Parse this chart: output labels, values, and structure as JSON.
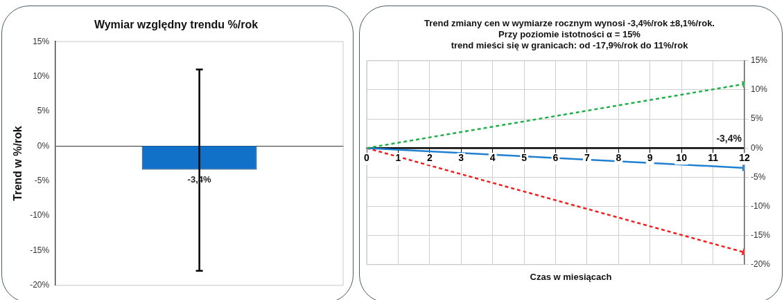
{
  "chart_data": [
    {
      "type": "bar",
      "title": "Wymiar względny trendu %/rok",
      "ylabel": "Trend w %/rok",
      "categories": [
        null
      ],
      "series": [
        {
          "color": "#1170c8",
          "values": [
            -3.4
          ],
          "errors": [
            [
              -17.9,
              11
            ]
          ],
          "value_labels": [
            "-3,4%"
          ]
        }
      ],
      "ylim": [
        -20,
        15
      ],
      "yticks": [
        {
          "value": -20,
          "label": "-20%"
        },
        {
          "value": -15,
          "label": "-15%"
        },
        {
          "value": -10,
          "label": "-10%"
        },
        {
          "value": -5,
          "label": "-5%"
        },
        {
          "value": 0,
          "label": "0%"
        },
        {
          "value": 5,
          "label": "5%"
        },
        {
          "value": 10,
          "label": "10%"
        },
        {
          "value": 15,
          "label": "15%"
        }
      ],
      "grid": false,
      "legend": false
    },
    {
      "type": "line",
      "title": "Trend zmiany cen w wymiarze rocznym wynosi -3,4%/rok ±8,1%/rok.\nPrzy poziomie istotności α = 15%\ntrend mieści się w granicach: od -17,9%/rok do 11%/rok",
      "xlabel": "Czas w miesiącach",
      "series": [
        {
          "color": "#1fb04a",
          "values": [
            0,
            11
          ],
          "line_style": "dashed",
          "axis": "y2"
        },
        {
          "color": "#1f7fd0",
          "values": [
            0,
            -3.4
          ],
          "line_style": "solid",
          "axis": "y2"
        },
        {
          "color": "#f21d1d",
          "values": [
            0,
            -17.9
          ],
          "line_style": "dashed",
          "axis": "y2"
        }
      ],
      "x": [
        0,
        12
      ],
      "xlim": [
        0,
        12
      ],
      "xticks": [
        0,
        1,
        2,
        3,
        4,
        5,
        6,
        7,
        8,
        9,
        10,
        11,
        12
      ],
      "y2lim": [
        -20,
        15
      ],
      "y2ticks": [
        {
          "value": -20,
          "label": "-20%"
        },
        {
          "value": -15,
          "label": "-15%"
        },
        {
          "value": -10,
          "label": "-10%"
        },
        {
          "value": -5,
          "label": "-5%"
        },
        {
          "value": 0,
          "label": "0%"
        },
        {
          "value": 5,
          "label": "5%"
        },
        {
          "value": 10,
          "label": "10%"
        },
        {
          "value": 15,
          "label": "15%"
        }
      ],
      "annotations": [
        "-3,4%"
      ],
      "grid": true,
      "legend": false,
      "marker": "triangle"
    }
  ]
}
